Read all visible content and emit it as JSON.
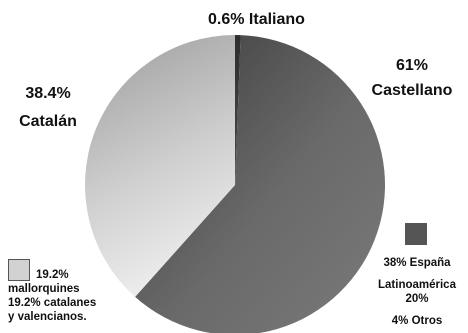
{
  "chart_data": {
    "type": "pie",
    "title": "",
    "slices": [
      {
        "name": "Italiano",
        "value": 0.6,
        "label_value": "0.6%",
        "color": "#3c3c3c"
      },
      {
        "name": "Castellano",
        "value": 61,
        "label_value": "61%",
        "color": "#5a5a5a"
      },
      {
        "name": "Catalán",
        "value": 38.4,
        "label_value": "38.4%",
        "color": "#c8c8c8"
      }
    ],
    "legend": [
      {
        "color": "#d2d2d2",
        "lines": [
          "19.2%",
          "mallorquines",
          "19.2% catalanes",
          "y valencianos."
        ]
      },
      {
        "color": "#555555",
        "lines": [
          "38% España",
          "Latinoamérica",
          "20%",
          "4% Otros"
        ]
      }
    ]
  }
}
